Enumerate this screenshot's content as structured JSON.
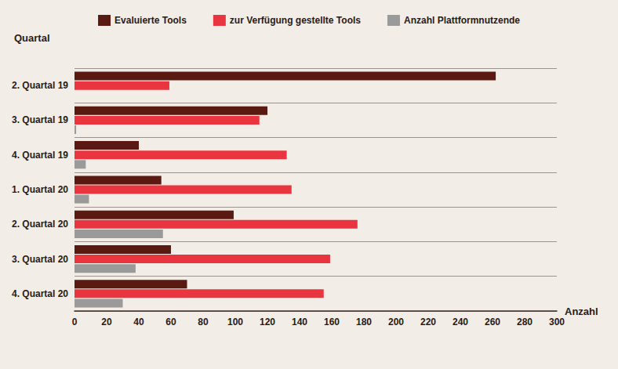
{
  "chart_data": {
    "type": "bar",
    "orientation": "horizontal",
    "y_label": "Quartal",
    "x_label": "Anzahl",
    "categories": [
      "2. Quartal 19",
      "3. Quartal 19",
      "4. Quartal 19",
      "1. Quartal 20",
      "2. Quartal 20",
      "3. Quartal 20",
      "4. Quartal 20"
    ],
    "series": [
      {
        "name": "Evaluierte Tools",
        "color": "#5a1a12",
        "values": [
          262,
          120,
          40,
          54,
          99,
          60,
          70
        ]
      },
      {
        "name": "zur Verfügung gestellte Tools",
        "color": "#e8353f",
        "values": [
          59,
          115,
          132,
          135,
          176,
          159,
          155
        ]
      },
      {
        "name": "Anzahl Plattformnutzende",
        "color": "#9a9a9a",
        "values": [
          0,
          1,
          7,
          9,
          55,
          38,
          30
        ]
      }
    ],
    "xlim": [
      0,
      300
    ],
    "xticks": [
      0,
      20,
      40,
      60,
      80,
      100,
      120,
      140,
      160,
      180,
      200,
      220,
      240,
      260,
      280,
      300
    ],
    "grid": true,
    "legend": "top"
  }
}
